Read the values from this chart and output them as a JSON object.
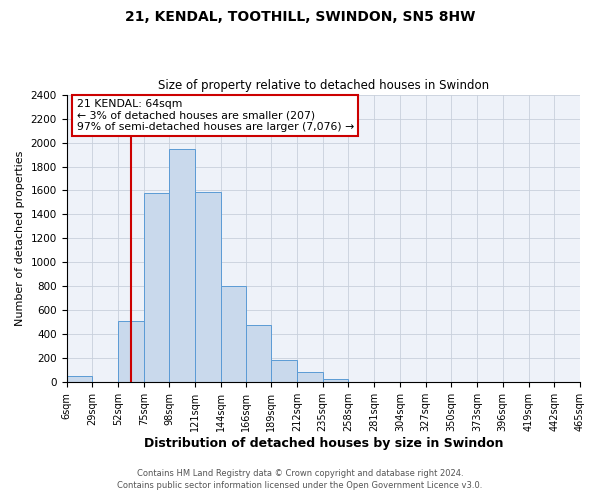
{
  "title": "21, KENDAL, TOOTHILL, SWINDON, SN5 8HW",
  "subtitle": "Size of property relative to detached houses in Swindon",
  "xlabel": "Distribution of detached houses by size in Swindon",
  "ylabel": "Number of detached properties",
  "bin_edges": [
    6,
    29,
    52,
    75,
    98,
    121,
    144,
    166,
    189,
    212,
    235,
    258,
    281,
    304,
    327,
    350,
    373,
    396,
    419,
    442,
    465
  ],
  "bin_heights": [
    50,
    0,
    510,
    1580,
    1950,
    1590,
    800,
    480,
    190,
    90,
    30,
    0,
    0,
    0,
    0,
    0,
    0,
    0,
    0,
    0
  ],
  "bar_color": "#c9d9ec",
  "bar_edge_color": "#5b9bd5",
  "vline_x": 64,
  "vline_color": "#cc0000",
  "annotation_text_line1": "21 KENDAL: 64sqm",
  "annotation_text_line2": "← 3% of detached houses are smaller (207)",
  "annotation_text_line3": "97% of semi-detached houses are larger (7,076) →",
  "box_edge_color": "#cc0000",
  "ylim": [
    0,
    2400
  ],
  "yticks": [
    0,
    200,
    400,
    600,
    800,
    1000,
    1200,
    1400,
    1600,
    1800,
    2000,
    2200,
    2400
  ],
  "tick_labels": [
    "6sqm",
    "29sqm",
    "52sqm",
    "75sqm",
    "98sqm",
    "121sqm",
    "144sqm",
    "166sqm",
    "189sqm",
    "212sqm",
    "235sqm",
    "258sqm",
    "281sqm",
    "304sqm",
    "327sqm",
    "350sqm",
    "373sqm",
    "396sqm",
    "419sqm",
    "442sqm",
    "465sqm"
  ],
  "footer_line1": "Contains HM Land Registry data © Crown copyright and database right 2024.",
  "footer_line2": "Contains public sector information licensed under the Open Government Licence v3.0.",
  "background_color": "#ffffff",
  "ax_background_color": "#eef2f9",
  "grid_color": "#c8d0dc"
}
